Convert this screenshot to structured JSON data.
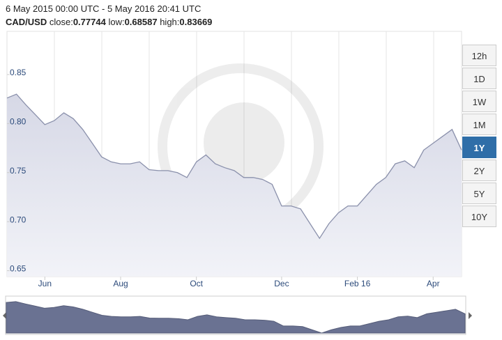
{
  "header": {
    "range": "6 May 2015 00:00 UTC - 5 May 2016 20:41 UTC",
    "pair": "CAD/USD",
    "close_label": "close:",
    "close": "0.77744",
    "low_label": "low:",
    "low": "0.68587",
    "high_label": "high:",
    "high": "0.83669"
  },
  "buttons": [
    "12h",
    "1D",
    "1W",
    "1M",
    "1Y",
    "2Y",
    "5Y",
    "10Y"
  ],
  "active_button": "1Y",
  "chart_data": {
    "type": "area",
    "color": "#8a90ab",
    "fill": "#e3e4ee",
    "categories": [
      null,
      null,
      null,
      null,
      "Jun",
      null,
      null,
      null,
      null,
      null,
      null,
      null,
      "Aug",
      null,
      null,
      null,
      null,
      null,
      null,
      null,
      "Oct",
      null,
      null,
      null,
      null,
      null,
      null,
      null,
      null,
      "Dec",
      null,
      null,
      null,
      null,
      null,
      null,
      null,
      "Feb 16",
      null,
      null,
      null,
      null,
      null,
      null,
      null,
      "Apr",
      null,
      null,
      null
    ],
    "values": [
      0.826,
      0.83,
      0.819,
      0.809,
      0.799,
      0.803,
      0.811,
      0.805,
      0.794,
      0.78,
      0.766,
      0.761,
      0.759,
      0.759,
      0.761,
      0.753,
      0.752,
      0.752,
      0.75,
      0.745,
      0.761,
      0.768,
      0.759,
      0.755,
      0.752,
      0.745,
      0.745,
      0.743,
      0.738,
      0.716,
      0.716,
      0.713,
      0.698,
      0.683,
      0.698,
      0.709,
      0.716,
      0.716,
      0.727,
      0.738,
      0.745,
      0.759,
      0.762,
      0.755,
      0.773,
      0.78,
      0.787,
      0.794,
      0.773
    ],
    "ylim": [
      0.644,
      0.894
    ],
    "yticks": [
      0.65,
      {
        "value": 0.7,
        "label": "0.70"
      },
      0.75,
      {
        "value": 0.8,
        "label": "0.80"
      },
      0.85
    ]
  }
}
